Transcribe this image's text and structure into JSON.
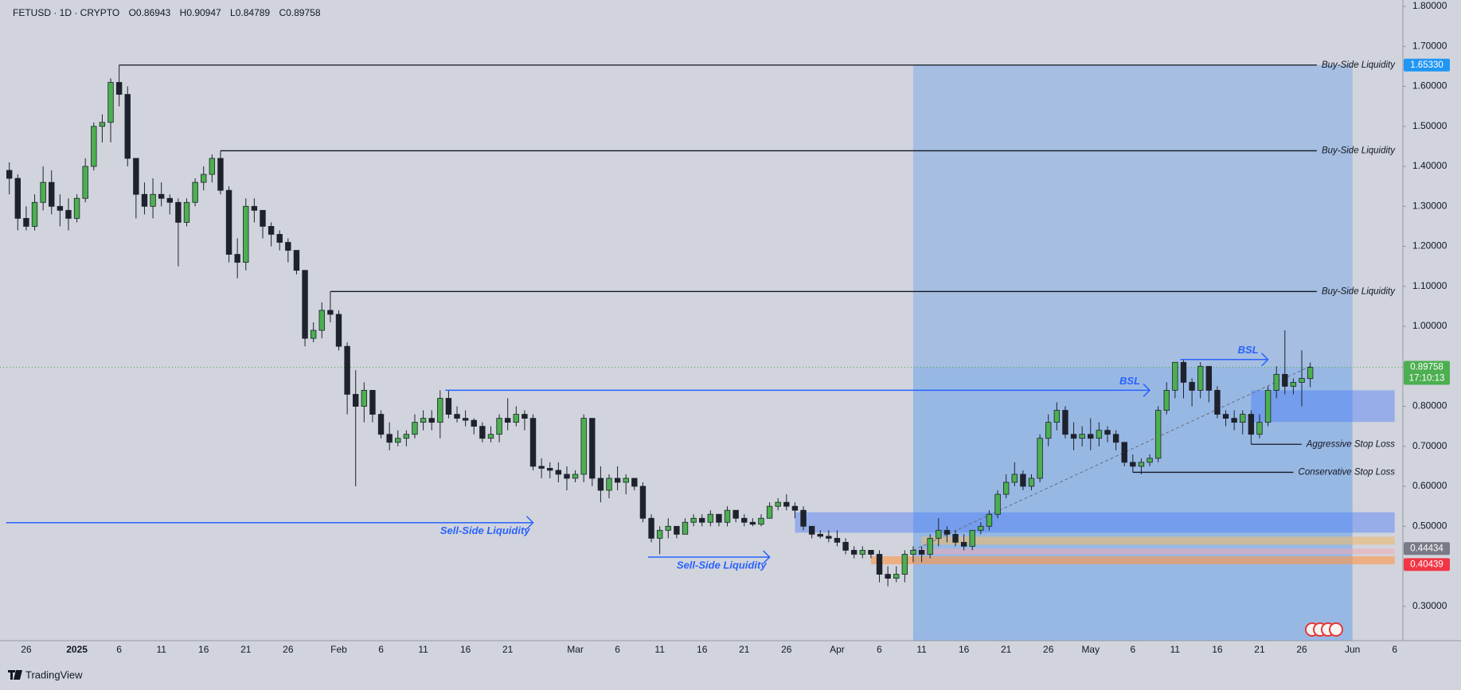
{
  "chart_data": {
    "type": "candlestick",
    "header": {
      "symbol": "FETUSD · 1D · CRYPTO",
      "ohlc": [
        "O0.86943",
        "H0.90947",
        "L0.84789",
        "C0.89758"
      ]
    },
    "brand": "TradingView",
    "up_color": "#4caf50",
    "down_color": "#1e222d",
    "ylim": [
      0.214,
      1.816
    ],
    "yticks": [
      {
        "value": 0.3,
        "label": "0.30000"
      },
      {
        "value": 0.4,
        "label": "0.40000"
      },
      {
        "value": 0.5,
        "label": "0.50000"
      },
      {
        "value": 0.6,
        "label": "0.60000"
      },
      {
        "value": 0.7,
        "label": "0.70000"
      },
      {
        "value": 0.8,
        "label": "0.80000"
      },
      {
        "value": 0.9,
        "label": "0.90000"
      },
      {
        "value": 1.0,
        "label": "1.00000"
      },
      {
        "value": 1.1,
        "label": "1.10000"
      },
      {
        "value": 1.2,
        "label": "1.20000"
      },
      {
        "value": 1.3,
        "label": "1.30000"
      },
      {
        "value": 1.4,
        "label": "1.40000"
      },
      {
        "value": 1.5,
        "label": "1.50000"
      },
      {
        "value": 1.6,
        "label": "1.60000"
      },
      {
        "value": 1.7,
        "label": "1.70000"
      },
      {
        "value": 1.8,
        "label": "1.80000"
      }
    ],
    "categories": [
      null,
      null,
      "26",
      null,
      null,
      null,
      null,
      null,
      "2025",
      null,
      null,
      null,
      null,
      "6",
      null,
      null,
      null,
      null,
      "11",
      null,
      null,
      null,
      null,
      "16",
      null,
      null,
      null,
      null,
      "21",
      null,
      null,
      null,
      null,
      "26",
      null,
      null,
      null,
      null,
      null,
      "Feb",
      null,
      null,
      null,
      null,
      "6",
      null,
      null,
      null,
      null,
      "11",
      null,
      null,
      null,
      null,
      "16",
      null,
      null,
      null,
      null,
      "21",
      null,
      null,
      null,
      null,
      null,
      null,
      null,
      "Mar",
      null,
      null,
      null,
      null,
      "6",
      null,
      null,
      null,
      null,
      "11",
      null,
      null,
      null,
      null,
      "16",
      null,
      null,
      null,
      null,
      "21",
      null,
      null,
      null,
      null,
      "26",
      null,
      null,
      null,
      null,
      null,
      "Apr",
      null,
      null,
      null,
      null,
      "6",
      null,
      null,
      null,
      null,
      "11",
      null,
      null,
      null,
      null,
      "16",
      null,
      null,
      null,
      null,
      "21",
      null,
      null,
      null,
      null,
      "26",
      null,
      null,
      null,
      null,
      "May",
      null,
      null,
      null,
      null,
      "6",
      null,
      null,
      null,
      null,
      "11",
      null,
      null,
      null,
      null,
      "16",
      null,
      null,
      null,
      null,
      "21",
      null,
      null,
      null,
      null,
      "26",
      null,
      null,
      null,
      null,
      null,
      "Jun",
      null,
      null,
      null,
      null,
      "6"
    ],
    "values": [
      [
        1.39,
        1.41,
        1.33,
        1.37
      ],
      [
        1.37,
        1.38,
        1.24,
        1.27
      ],
      [
        1.27,
        1.3,
        1.24,
        1.25
      ],
      [
        1.25,
        1.33,
        1.24,
        1.31
      ],
      [
        1.31,
        1.4,
        1.29,
        1.36
      ],
      [
        1.36,
        1.39,
        1.28,
        1.3
      ],
      [
        1.3,
        1.33,
        1.25,
        1.29
      ],
      [
        1.29,
        1.32,
        1.24,
        1.27
      ],
      [
        1.27,
        1.33,
        1.26,
        1.32
      ],
      [
        1.32,
        1.42,
        1.31,
        1.4
      ],
      [
        1.4,
        1.51,
        1.39,
        1.5
      ],
      [
        1.5,
        1.53,
        1.46,
        1.51
      ],
      [
        1.51,
        1.62,
        1.46,
        1.61
      ],
      [
        1.61,
        1.6533,
        1.55,
        1.58
      ],
      [
        1.58,
        1.6,
        1.4,
        1.42
      ],
      [
        1.42,
        1.42,
        1.27,
        1.33
      ],
      [
        1.33,
        1.36,
        1.28,
        1.3
      ],
      [
        1.3,
        1.37,
        1.27,
        1.33
      ],
      [
        1.33,
        1.36,
        1.3,
        1.32
      ],
      [
        1.32,
        1.33,
        1.28,
        1.31
      ],
      [
        1.31,
        1.32,
        1.15,
        1.26
      ],
      [
        1.26,
        1.32,
        1.25,
        1.31
      ],
      [
        1.31,
        1.37,
        1.3,
        1.36
      ],
      [
        1.36,
        1.4,
        1.34,
        1.38
      ],
      [
        1.38,
        1.43,
        1.36,
        1.42
      ],
      [
        1.42,
        1.439,
        1.33,
        1.34
      ],
      [
        1.34,
        1.35,
        1.16,
        1.18
      ],
      [
        1.18,
        1.22,
        1.12,
        1.16
      ],
      [
        1.16,
        1.32,
        1.14,
        1.3
      ],
      [
        1.3,
        1.32,
        1.26,
        1.29
      ],
      [
        1.29,
        1.29,
        1.22,
        1.25
      ],
      [
        1.25,
        1.26,
        1.2,
        1.23
      ],
      [
        1.23,
        1.24,
        1.19,
        1.21
      ],
      [
        1.21,
        1.22,
        1.16,
        1.19
      ],
      [
        1.19,
        1.19,
        1.13,
        1.14
      ],
      [
        1.14,
        1.14,
        0.95,
        0.97
      ],
      [
        0.97,
        1.01,
        0.96,
        0.99
      ],
      [
        0.99,
        1.06,
        0.97,
        1.04
      ],
      [
        1.04,
        1.087,
        1.01,
        1.03
      ],
      [
        1.03,
        1.04,
        0.94,
        0.95
      ],
      [
        0.95,
        0.96,
        0.78,
        0.83
      ],
      [
        0.83,
        0.89,
        0.6,
        0.8
      ],
      [
        0.8,
        0.86,
        0.76,
        0.84
      ],
      [
        0.84,
        0.84,
        0.76,
        0.78
      ],
      [
        0.78,
        0.79,
        0.72,
        0.73
      ],
      [
        0.73,
        0.76,
        0.69,
        0.71
      ],
      [
        0.71,
        0.74,
        0.7,
        0.72
      ],
      [
        0.72,
        0.74,
        0.7,
        0.73
      ],
      [
        0.73,
        0.78,
        0.72,
        0.76
      ],
      [
        0.76,
        0.79,
        0.74,
        0.77
      ],
      [
        0.77,
        0.79,
        0.74,
        0.76
      ],
      [
        0.76,
        0.84,
        0.72,
        0.82
      ],
      [
        0.82,
        0.84,
        0.77,
        0.78
      ],
      [
        0.78,
        0.8,
        0.76,
        0.77
      ],
      [
        0.77,
        0.79,
        0.75,
        0.765
      ],
      [
        0.765,
        0.77,
        0.73,
        0.75
      ],
      [
        0.75,
        0.76,
        0.71,
        0.72
      ],
      [
        0.72,
        0.75,
        0.71,
        0.73
      ],
      [
        0.73,
        0.78,
        0.71,
        0.77
      ],
      [
        0.77,
        0.82,
        0.74,
        0.76
      ],
      [
        0.76,
        0.8,
        0.75,
        0.78
      ],
      [
        0.78,
        0.79,
        0.74,
        0.77
      ],
      [
        0.77,
        0.78,
        0.64,
        0.65
      ],
      [
        0.65,
        0.67,
        0.62,
        0.645
      ],
      [
        0.645,
        0.66,
        0.62,
        0.64
      ],
      [
        0.64,
        0.66,
        0.61,
        0.63
      ],
      [
        0.63,
        0.65,
        0.59,
        0.62
      ],
      [
        0.62,
        0.64,
        0.61,
        0.63
      ],
      [
        0.63,
        0.78,
        0.61,
        0.77
      ],
      [
        0.77,
        0.77,
        0.6,
        0.62
      ],
      [
        0.62,
        0.65,
        0.56,
        0.59
      ],
      [
        0.59,
        0.63,
        0.57,
        0.62
      ],
      [
        0.62,
        0.65,
        0.59,
        0.61
      ],
      [
        0.61,
        0.63,
        0.58,
        0.62
      ],
      [
        0.62,
        0.62,
        0.59,
        0.6
      ],
      [
        0.6,
        0.61,
        0.51,
        0.52
      ],
      [
        0.52,
        0.53,
        0.46,
        0.47
      ],
      [
        0.47,
        0.5,
        0.43,
        0.49
      ],
      [
        0.49,
        0.52,
        0.47,
        0.5
      ],
      [
        0.5,
        0.5,
        0.47,
        0.48
      ],
      [
        0.48,
        0.52,
        0.48,
        0.51
      ],
      [
        0.51,
        0.53,
        0.5,
        0.52
      ],
      [
        0.52,
        0.53,
        0.5,
        0.51
      ],
      [
        0.51,
        0.54,
        0.5,
        0.53
      ],
      [
        0.53,
        0.53,
        0.5,
        0.51
      ],
      [
        0.51,
        0.55,
        0.5,
        0.54
      ],
      [
        0.54,
        0.54,
        0.51,
        0.52
      ],
      [
        0.52,
        0.53,
        0.5,
        0.51
      ],
      [
        0.51,
        0.52,
        0.5,
        0.505
      ],
      [
        0.505,
        0.53,
        0.5,
        0.52
      ],
      [
        0.52,
        0.56,
        0.52,
        0.55
      ],
      [
        0.55,
        0.57,
        0.54,
        0.56
      ],
      [
        0.56,
        0.58,
        0.54,
        0.55
      ],
      [
        0.55,
        0.56,
        0.52,
        0.54
      ],
      [
        0.54,
        0.55,
        0.49,
        0.5
      ],
      [
        0.5,
        0.5,
        0.47,
        0.48
      ],
      [
        0.48,
        0.49,
        0.47,
        0.475
      ],
      [
        0.475,
        0.49,
        0.46,
        0.47
      ],
      [
        0.47,
        0.49,
        0.45,
        0.46
      ],
      [
        0.46,
        0.47,
        0.43,
        0.44
      ],
      [
        0.44,
        0.45,
        0.42,
        0.43
      ],
      [
        0.43,
        0.45,
        0.42,
        0.44
      ],
      [
        0.44,
        0.44,
        0.42,
        0.43
      ],
      [
        0.43,
        0.44,
        0.36,
        0.38
      ],
      [
        0.38,
        0.4,
        0.35,
        0.37
      ],
      [
        0.37,
        0.4,
        0.36,
        0.38
      ],
      [
        0.38,
        0.44,
        0.36,
        0.43
      ],
      [
        0.43,
        0.45,
        0.41,
        0.44
      ],
      [
        0.44,
        0.45,
        0.41,
        0.43
      ],
      [
        0.43,
        0.48,
        0.42,
        0.47
      ],
      [
        0.47,
        0.52,
        0.45,
        0.49
      ],
      [
        0.49,
        0.5,
        0.46,
        0.48
      ],
      [
        0.48,
        0.49,
        0.45,
        0.46
      ],
      [
        0.46,
        0.48,
        0.44,
        0.45
      ],
      [
        0.45,
        0.49,
        0.44,
        0.49
      ],
      [
        0.49,
        0.51,
        0.48,
        0.5
      ],
      [
        0.5,
        0.54,
        0.49,
        0.53
      ],
      [
        0.53,
        0.59,
        0.52,
        0.58
      ],
      [
        0.58,
        0.63,
        0.57,
        0.61
      ],
      [
        0.61,
        0.66,
        0.6,
        0.63
      ],
      [
        0.63,
        0.64,
        0.59,
        0.6
      ],
      [
        0.6,
        0.63,
        0.59,
        0.62
      ],
      [
        0.62,
        0.73,
        0.61,
        0.72
      ],
      [
        0.72,
        0.78,
        0.7,
        0.76
      ],
      [
        0.76,
        0.81,
        0.74,
        0.79
      ],
      [
        0.79,
        0.8,
        0.72,
        0.73
      ],
      [
        0.73,
        0.76,
        0.69,
        0.72
      ],
      [
        0.72,
        0.75,
        0.7,
        0.73
      ],
      [
        0.73,
        0.77,
        0.69,
        0.72
      ],
      [
        0.72,
        0.76,
        0.7,
        0.74
      ],
      [
        0.74,
        0.75,
        0.71,
        0.73
      ],
      [
        0.73,
        0.74,
        0.69,
        0.71
      ],
      [
        0.71,
        0.71,
        0.65,
        0.66
      ],
      [
        0.66,
        0.68,
        0.635,
        0.65
      ],
      [
        0.65,
        0.67,
        0.63,
        0.66
      ],
      [
        0.66,
        0.68,
        0.65,
        0.67
      ],
      [
        0.67,
        0.8,
        0.66,
        0.79
      ],
      [
        0.79,
        0.86,
        0.78,
        0.84
      ],
      [
        0.84,
        0.91,
        0.82,
        0.91
      ],
      [
        0.91,
        0.917,
        0.82,
        0.86
      ],
      [
        0.86,
        0.87,
        0.8,
        0.84
      ],
      [
        0.84,
        0.91,
        0.82,
        0.9
      ],
      [
        0.9,
        0.9,
        0.81,
        0.84
      ],
      [
        0.84,
        0.85,
        0.77,
        0.78
      ],
      [
        0.78,
        0.79,
        0.75,
        0.77
      ],
      [
        0.77,
        0.79,
        0.74,
        0.76
      ],
      [
        0.76,
        0.79,
        0.73,
        0.78
      ],
      [
        0.78,
        0.79,
        0.705,
        0.73
      ],
      [
        0.73,
        0.78,
        0.72,
        0.76
      ],
      [
        0.76,
        0.85,
        0.75,
        0.84
      ],
      [
        0.84,
        0.9,
        0.82,
        0.88
      ],
      [
        0.88,
        0.99,
        0.83,
        0.85
      ],
      [
        0.85,
        0.87,
        0.83,
        0.86
      ],
      [
        0.86,
        0.94,
        0.8,
        0.87
      ],
      [
        0.86943,
        0.90947,
        0.84789,
        0.89758
      ],
      null,
      null,
      null,
      null,
      null,
      null,
      null,
      null,
      null,
      null
    ],
    "zones": [
      {
        "low": 0.89758,
        "high": 1.6533,
        "from": 107,
        "to": 159,
        "color": "rgba(110,165,230,0.45)"
      },
      {
        "high": 0.89758,
        "from": 107,
        "to": 159,
        "color": "rgba(95,155,235,0.5)"
      },
      {
        "low": 0.484,
        "high": 0.535,
        "from": 93,
        "to": 164,
        "color": "rgba(70,120,250,0.42)"
      },
      {
        "low": 0.761,
        "high": 0.84,
        "from": 147,
        "to": 164,
        "color": "rgba(70,120,250,0.42)"
      },
      {
        "low": 0.454,
        "high": 0.474,
        "from": 108,
        "to": 164,
        "color": "rgba(235,185,110,0.6)"
      },
      {
        "low": 0.43,
        "high": 0.444,
        "from": 108,
        "to": 164,
        "color": "rgba(240,170,180,0.55)"
      },
      {
        "low": 0.405,
        "high": 0.425,
        "from": 102,
        "to": 164,
        "color": "rgba(255,150,70,0.6)"
      }
    ],
    "levels": [
      {
        "label": "Buy-Side Liquidity",
        "value": 1.6533,
        "from": 13
      },
      {
        "label": "Buy-Side Liquidity",
        "value": 1.439,
        "from": 25
      },
      {
        "label": "Buy-Side Liquidity",
        "value": 1.087,
        "from": 38
      },
      {
        "label": "Aggressive Stop Loss",
        "value": 0.705,
        "from": 147
      },
      {
        "label": "Conservative Stop Loss",
        "value": 0.635,
        "from": 133
      }
    ],
    "arrows": [
      {
        "label": "Sell-Side Liquidity",
        "value": 0.509,
        "from": 0,
        "to": 62,
        "label_side": "below"
      },
      {
        "label": "Sell-Side Liquidity",
        "value": 0.423,
        "from": 76,
        "to": 90,
        "label_side": "below"
      },
      {
        "label": "BSL",
        "value": 0.84,
        "from": 52,
        "to": 135,
        "label_side": "above"
      },
      {
        "label": "BSL",
        "value": 0.917,
        "from": 139,
        "to": 149,
        "label_side": "above"
      }
    ],
    "trendline": {
      "x": [
        107,
        154
      ],
      "y": [
        0.44,
        0.9
      ]
    },
    "price_tags": [
      {
        "value": 1.6533,
        "label": "1.65330",
        "color": "#2196f3"
      },
      {
        "value": 0.89758,
        "label": "0.89758",
        "sub": "17:10:13",
        "color": "#4caf50",
        "dotted": true
      },
      {
        "value": 0.44434,
        "label": "0.44434",
        "color": "#787b86"
      },
      {
        "value": 0.40439,
        "label": "0.40439",
        "color": "#f23645"
      }
    ]
  }
}
